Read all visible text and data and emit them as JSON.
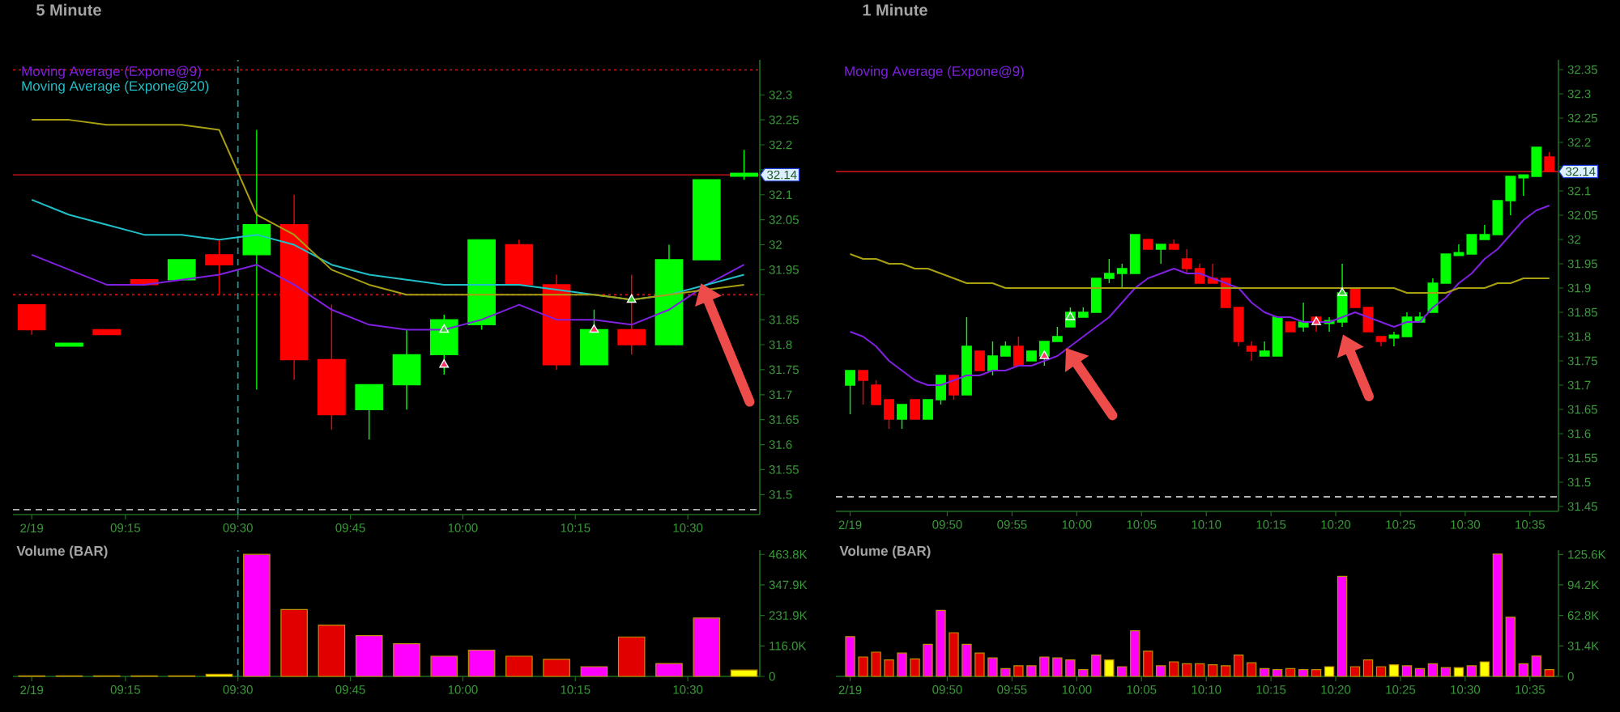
{
  "chart_data": [
    {
      "type": "candlestick",
      "title": "5 Minute",
      "legend": "top left",
      "x": [
        9.0417,
        9.125,
        9.2083,
        9.2917,
        9.375,
        9.4583,
        9.5417,
        9.625,
        9.7083,
        9.7917,
        9.875,
        9.9583,
        10.0417,
        10.125,
        10.2083,
        10.2917,
        10.375,
        10.4583,
        10.5417,
        10.625
      ],
      "xlim": [
        9,
        10.66
      ],
      "xticks": [
        {
          "value": 9.0417,
          "label": "2/19"
        },
        {
          "value": 9.25,
          "label": "09:15"
        },
        {
          "value": 9.5,
          "label": "09:30"
        },
        {
          "value": 9.75,
          "label": "09:45"
        },
        {
          "value": 10,
          "label": "10:00"
        },
        {
          "value": 10.25,
          "label": "10:15"
        },
        {
          "value": 10.5,
          "label": "10:30"
        }
      ],
      "ylim": [
        31.46,
        32.37
      ],
      "yticks": [
        31.5,
        31.55,
        31.6,
        31.65,
        31.7,
        31.75,
        31.8,
        31.85,
        {
          "value": 31.9,
          "label": null
        },
        31.95,
        32,
        32.05,
        32.1,
        {
          "value": 32.15,
          "label": null
        },
        32.2,
        32.25,
        32.3
      ],
      "series": [
        {
          "type": "candlestick",
          "ohlc": [
            [
              31.88,
              31.88,
              31.82,
              31.83
            ],
            [
              31.8,
              31.8,
              31.8,
              31.8
            ],
            [
              31.83,
              31.83,
              31.82,
              31.82
            ],
            [
              31.93,
              31.93,
              31.92,
              31.92
            ],
            [
              31.93,
              31.97,
              31.93,
              31.97
            ],
            [
              31.98,
              32.01,
              31.9,
              31.96
            ],
            [
              31.98,
              32.23,
              31.71,
              32.04
            ],
            [
              32.04,
              32.1,
              31.73,
              31.77
            ],
            [
              31.77,
              31.88,
              31.63,
              31.66
            ],
            [
              31.67,
              31.72,
              31.61,
              31.72
            ],
            [
              31.72,
              31.83,
              31.67,
              31.78
            ],
            [
              31.78,
              31.86,
              31.74,
              31.85
            ],
            [
              31.84,
              32.01,
              31.83,
              32.01
            ],
            [
              32.0,
              32.01,
              31.92,
              31.92
            ],
            [
              31.92,
              31.94,
              31.75,
              31.76
            ],
            [
              31.76,
              31.87,
              31.76,
              31.83
            ],
            [
              31.83,
              31.94,
              31.78,
              31.8
            ],
            [
              31.8,
              32.0,
              31.8,
              31.97
            ],
            [
              31.97,
              32.13,
              31.97,
              32.13
            ],
            [
              32.14,
              32.19,
              32.13,
              32.14
            ]
          ],
          "colors": [
            "#ff0000",
            "#00ff00",
            "#ff0000",
            "#ff0000",
            "#00ff00",
            "#ff0000",
            "#00ff00",
            "#ff0000",
            "#ff0000",
            "#00ff00",
            "#00ff00",
            "#00ff00",
            "#00ff00",
            "#ff0000",
            "#ff0000",
            "#00ff00",
            "#ff0000",
            "#00ff00",
            "#00ff00",
            "#00ff00"
          ]
        },
        {
          "type": "line",
          "name": "Moving Average (Expone@9)",
          "color": "#8020e0",
          "values": [
            31.98,
            31.95,
            31.92,
            31.92,
            31.93,
            31.94,
            31.96,
            31.92,
            31.87,
            31.84,
            31.83,
            31.83,
            31.85,
            31.88,
            31.85,
            31.85,
            31.84,
            31.87,
            31.92,
            31.96
          ]
        },
        {
          "type": "line",
          "name": "Moving Average (Expone@20)",
          "color": "#20c0c8",
          "values": [
            32.09,
            32.06,
            32.04,
            32.02,
            32.02,
            32.01,
            32.02,
            32.0,
            31.96,
            31.94,
            31.93,
            31.92,
            31.92,
            31.92,
            31.91,
            31.9,
            31.89,
            31.9,
            31.92,
            31.94
          ]
        },
        {
          "type": "line",
          "color": "#a8a010",
          "values": [
            32.25,
            32.25,
            32.24,
            32.24,
            32.24,
            32.23,
            32.06,
            32.02,
            31.95,
            31.92,
            31.9,
            31.9,
            31.9,
            31.9,
            31.9,
            31.9,
            31.89,
            31.9,
            31.91,
            31.92
          ]
        },
        {
          "type": "scatter",
          "marker": "triangle",
          "color": "#30d030",
          "x": [
            9.9583,
            10.375
          ],
          "values": [
            31.83,
            31.89
          ]
        },
        {
          "type": "scatter",
          "marker": "triangle",
          "color": "#ff3366",
          "x": [
            9.9583,
            10.2917
          ],
          "values": [
            31.76,
            31.83
          ]
        }
      ],
      "ref_lines": [
        {
          "axis": "y",
          "value": 32.35,
          "color": "#c01010",
          "line_style": "dotted"
        },
        {
          "axis": "y",
          "value": 32.14,
          "color": "#a01010",
          "line_style": "solid",
          "label": "32.14"
        },
        {
          "axis": "y",
          "value": 31.9,
          "color": "#c01010",
          "line_style": "dotted"
        },
        {
          "axis": "y",
          "value": 31.47,
          "color": "#b4b4b4",
          "line_style": "dashed"
        },
        {
          "axis": "x",
          "value": 9.5,
          "color": "#1f8f8f",
          "line_style": "dashed"
        }
      ]
    },
    {
      "type": "candlestick",
      "title": "1 Minute",
      "legend": "top left",
      "x": [
        9.7083,
        9.725,
        9.7417,
        9.7583,
        9.775,
        9.7917,
        9.8083,
        9.825,
        9.8417,
        9.8583,
        9.875,
        9.8917,
        9.9083,
        9.925,
        9.9417,
        9.9583,
        9.975,
        9.9917,
        10.0083,
        10.025,
        10.0417,
        10.0583,
        10.075,
        10.0917,
        10.1083,
        10.125,
        10.1417,
        10.1583,
        10.175,
        10.1917,
        10.2083,
        10.225,
        10.2417,
        10.2583,
        10.275,
        10.2917,
        10.3083,
        10.325,
        10.3417,
        10.3583,
        10.375,
        10.3917,
        10.4083,
        10.425,
        10.4417,
        10.4583,
        10.475,
        10.4917,
        10.5083,
        10.525,
        10.5417,
        10.5583,
        10.575,
        10.5917,
        10.6083
      ],
      "xlim": [
        9.69,
        10.62
      ],
      "xticks": [
        {
          "value": 9.7083,
          "label": "2/19"
        },
        {
          "value": 9.8333,
          "label": "09:50"
        },
        {
          "value": 9.9167,
          "label": "09:55"
        },
        {
          "value": 10,
          "label": "10:00"
        },
        {
          "value": 10.0833,
          "label": "10:05"
        },
        {
          "value": 10.1667,
          "label": "10:10"
        },
        {
          "value": 10.25,
          "label": "10:15"
        },
        {
          "value": 10.3333,
          "label": "10:20"
        },
        {
          "value": 10.4167,
          "label": "10:25"
        },
        {
          "value": 10.5,
          "label": "10:30"
        },
        {
          "value": 10.5833,
          "label": "10:35"
        }
      ],
      "ylim": [
        31.44,
        32.37
      ],
      "yticks": [
        31.45,
        31.5,
        31.55,
        31.6,
        31.65,
        31.7,
        31.75,
        31.8,
        31.85,
        31.9,
        31.95,
        32,
        32.05,
        32.1,
        {
          "value": 32.15,
          "label": null
        },
        32.2,
        32.25,
        32.3,
        32.35
      ],
      "series": [
        {
          "type": "candlestick",
          "ohlc": [
            [
              31.7,
              31.73,
              31.64,
              31.73
            ],
            [
              31.73,
              31.73,
              31.66,
              31.71
            ],
            [
              31.7,
              31.71,
              31.66,
              31.66
            ],
            [
              31.67,
              31.67,
              31.61,
              31.63
            ],
            [
              31.63,
              31.66,
              31.61,
              31.66
            ],
            [
              31.67,
              31.67,
              31.63,
              31.63
            ],
            [
              31.63,
              31.67,
              31.63,
              31.67
            ],
            [
              31.67,
              31.72,
              31.66,
              31.72
            ],
            [
              31.72,
              31.72,
              31.67,
              31.68
            ],
            [
              31.68,
              31.84,
              31.68,
              31.78
            ],
            [
              31.77,
              31.77,
              31.73,
              31.73
            ],
            [
              31.73,
              31.79,
              31.72,
              31.76
            ],
            [
              31.76,
              31.79,
              31.76,
              31.78
            ],
            [
              31.78,
              31.8,
              31.74,
              31.74
            ],
            [
              31.75,
              31.77,
              31.75,
              31.77
            ],
            [
              31.76,
              31.79,
              31.74,
              31.79
            ],
            [
              31.79,
              31.82,
              31.79,
              31.8
            ],
            [
              31.82,
              31.86,
              31.82,
              31.85
            ],
            [
              31.84,
              31.86,
              31.84,
              31.85
            ],
            [
              31.85,
              31.92,
              31.85,
              31.92
            ],
            [
              31.92,
              31.96,
              31.91,
              31.93
            ],
            [
              31.93,
              31.95,
              31.9,
              31.94
            ],
            [
              31.93,
              32.01,
              31.93,
              32.01
            ],
            [
              32.0,
              32.0,
              31.98,
              31.98
            ],
            [
              31.98,
              31.99,
              31.95,
              31.99
            ],
            [
              31.99,
              32.0,
              31.98,
              31.98
            ],
            [
              31.96,
              31.98,
              31.93,
              31.94
            ],
            [
              31.94,
              31.95,
              31.91,
              31.91
            ],
            [
              31.92,
              31.95,
              31.91,
              31.91
            ],
            [
              31.92,
              31.92,
              31.86,
              31.86
            ],
            [
              31.86,
              31.86,
              31.78,
              31.79
            ],
            [
              31.78,
              31.79,
              31.75,
              31.77
            ],
            [
              31.76,
              31.79,
              31.76,
              31.77
            ],
            [
              31.76,
              31.84,
              31.76,
              31.84
            ],
            [
              31.83,
              31.83,
              31.81,
              31.81
            ],
            [
              31.82,
              31.87,
              31.81,
              31.83
            ],
            [
              31.84,
              31.84,
              31.81,
              31.83
            ],
            [
              31.83,
              31.84,
              31.81,
              31.83
            ],
            [
              31.83,
              31.95,
              31.82,
              31.89
            ],
            [
              31.9,
              31.9,
              31.86,
              31.86
            ],
            [
              31.86,
              31.86,
              31.81,
              31.81
            ],
            [
              31.8,
              31.8,
              31.78,
              31.79
            ],
            [
              31.8,
              31.81,
              31.78,
              31.8
            ],
            [
              31.8,
              31.85,
              31.8,
              31.84
            ],
            [
              31.83,
              31.85,
              31.83,
              31.84
            ],
            [
              31.85,
              31.92,
              31.85,
              31.91
            ],
            [
              31.91,
              31.97,
              31.91,
              31.97
            ],
            [
              31.97,
              31.99,
              31.97,
              31.97
            ],
            [
              31.97,
              32.01,
              31.97,
              32.01
            ],
            [
              32.0,
              32.03,
              32.0,
              32.01
            ],
            [
              32.01,
              32.08,
              32.01,
              32.08
            ],
            [
              32.08,
              32.13,
              32.05,
              32.13
            ],
            [
              32.13,
              32.13,
              32.09,
              32.13
            ],
            [
              32.13,
              32.19,
              32.13,
              32.19
            ],
            [
              32.17,
              32.18,
              32.14,
              32.14
            ]
          ],
          "colors": [
            "#00ff00",
            "#ff0000",
            "#ff0000",
            "#ff0000",
            "#00ff00",
            "#ff0000",
            "#00ff00",
            "#00ff00",
            "#ff0000",
            "#00ff00",
            "#ff0000",
            "#00ff00",
            "#00ff00",
            "#ff0000",
            "#00ff00",
            "#00ff00",
            "#00ff00",
            "#00ff00",
            "#00ff00",
            "#00ff00",
            "#00ff00",
            "#00ff00",
            "#00ff00",
            "#ff0000",
            "#00ff00",
            "#ff0000",
            "#ff0000",
            "#ff0000",
            "#ff0000",
            "#ff0000",
            "#ff0000",
            "#ff0000",
            "#00ff00",
            "#00ff00",
            "#ff0000",
            "#00ff00",
            "#ff0000",
            "#00ff00",
            "#00ff00",
            "#ff0000",
            "#ff0000",
            "#ff0000",
            "#00ff00",
            "#00ff00",
            "#00ff00",
            "#00ff00",
            "#00ff00",
            "#00ff00",
            "#00ff00",
            "#00ff00",
            "#00ff00",
            "#00ff00",
            "#00ff00",
            "#00ff00",
            "#ff0000"
          ]
        },
        {
          "type": "line",
          "name": "Moving Average (Expone@9)",
          "color": "#8020e0",
          "values": [
            31.81,
            31.8,
            31.78,
            31.75,
            31.73,
            31.71,
            31.7,
            31.7,
            31.71,
            31.72,
            31.72,
            31.73,
            31.73,
            31.74,
            31.74,
            31.75,
            31.76,
            31.78,
            31.8,
            31.82,
            31.84,
            31.87,
            31.9,
            31.92,
            31.93,
            31.94,
            31.93,
            31.93,
            31.92,
            31.91,
            31.9,
            31.87,
            31.85,
            31.84,
            31.84,
            31.83,
            31.83,
            31.83,
            31.84,
            31.85,
            31.84,
            31.83,
            31.82,
            31.83,
            31.83,
            31.86,
            31.88,
            31.91,
            31.93,
            31.96,
            31.98,
            32.01,
            32.04,
            32.06,
            32.07
          ]
        },
        {
          "type": "line",
          "color": "#a8a010",
          "values": [
            31.97,
            31.96,
            31.96,
            31.95,
            31.95,
            31.94,
            31.94,
            31.93,
            31.92,
            31.91,
            31.91,
            31.91,
            31.9,
            31.9,
            31.9,
            31.9,
            31.9,
            31.9,
            31.9,
            31.9,
            31.9,
            31.9,
            31.9,
            31.9,
            31.9,
            31.9,
            31.9,
            31.9,
            31.9,
            31.9,
            31.9,
            31.9,
            31.9,
            31.9,
            31.9,
            31.9,
            31.9,
            31.9,
            31.9,
            31.9,
            31.9,
            31.9,
            31.9,
            31.89,
            31.89,
            31.89,
            31.89,
            31.9,
            31.9,
            31.9,
            31.91,
            31.91,
            31.92,
            31.92,
            31.92
          ]
        },
        {
          "type": "scatter",
          "marker": "triangle",
          "color": "#30d030",
          "x": [
            9.9917,
            10.3417
          ],
          "values": [
            31.84,
            31.89
          ]
        },
        {
          "type": "scatter",
          "marker": "triangle",
          "color": "#ff3366",
          "x": [
            9.9583,
            10.3083
          ],
          "values": [
            31.76,
            31.83
          ]
        }
      ],
      "ref_lines": [
        {
          "axis": "y",
          "value": 32.14,
          "color": "#a01010",
          "line_style": "solid",
          "label": "32.14"
        },
        {
          "axis": "y",
          "value": 31.47,
          "color": "#b4b4b4",
          "line_style": "dashed"
        }
      ]
    },
    {
      "type": "bar",
      "title": "Volume (BAR)",
      "x": [
        9.0417,
        9.125,
        9.2083,
        9.2917,
        9.375,
        9.4583,
        9.5417,
        9.625,
        9.7083,
        9.7917,
        9.875,
        9.9583,
        10.0417,
        10.125,
        10.2083,
        10.2917,
        10.375,
        10.4583,
        10.5417,
        10.625
      ],
      "values": [
        2000,
        2000,
        2000,
        2000,
        2000,
        8000,
        464000,
        254000,
        195000,
        155000,
        124000,
        77000,
        100000,
        77000,
        65000,
        37000,
        150000,
        49000,
        222000,
        24000
      ],
      "colors": [
        "#ffff00",
        "#ffff00",
        "#ffff00",
        "#ffff00",
        "#ffff00",
        "#ffff00",
        "#ff00ff",
        "#e00000",
        "#e00000",
        "#ff00ff",
        "#ff00ff",
        "#ff00ff",
        "#ff00ff",
        "#e00000",
        "#e00000",
        "#ff00ff",
        "#e00000",
        "#ff00ff",
        "#ff00ff",
        "#ffff00"
      ],
      "xlim": [
        9,
        10.66
      ],
      "xticks": [
        {
          "value": 9.0417,
          "label": "2/19"
        },
        {
          "value": 9.25,
          "label": "09:15"
        },
        {
          "value": 9.5,
          "label": "09:30"
        },
        {
          "value": 9.75,
          "label": "09:45"
        },
        {
          "value": 10,
          "label": "10:00"
        },
        {
          "value": 10.25,
          "label": "10:15"
        },
        {
          "value": 10.5,
          "label": "10:30"
        }
      ],
      "ylim": [
        0,
        480000
      ],
      "yticks": [
        0,
        {
          "value": 116000,
          "label": "116.0K"
        },
        {
          "value": 231900,
          "label": "231.9K"
        },
        {
          "value": 347900,
          "label": "347.9K"
        },
        {
          "value": 463800,
          "label": "463.8K"
        }
      ],
      "ref_lines": [
        {
          "axis": "x",
          "value": 9.5,
          "color": "#1f8f8f",
          "line_style": "dashed"
        }
      ]
    },
    {
      "type": "bar",
      "title": "Volume (BAR)",
      "x": [
        9.7083,
        9.725,
        9.7417,
        9.7583,
        9.775,
        9.7917,
        9.8083,
        9.825,
        9.8417,
        9.8583,
        9.875,
        9.8917,
        9.9083,
        9.925,
        9.9417,
        9.9583,
        9.975,
        9.9917,
        10.0083,
        10.025,
        10.0417,
        10.0583,
        10.075,
        10.0917,
        10.1083,
        10.125,
        10.1417,
        10.1583,
        10.175,
        10.1917,
        10.2083,
        10.225,
        10.2417,
        10.2583,
        10.275,
        10.2917,
        10.3083,
        10.325,
        10.3417,
        10.3583,
        10.375,
        10.3917,
        10.4083,
        10.425,
        10.4417,
        10.4583,
        10.475,
        10.4917,
        10.5083,
        10.525,
        10.5417,
        10.5583,
        10.575,
        10.5917,
        10.6083
      ],
      "values": [
        41000,
        20000,
        25000,
        17000,
        24000,
        18000,
        33000,
        68000,
        45000,
        33000,
        24000,
        19000,
        8000,
        11000,
        11000,
        20000,
        19000,
        17000,
        7000,
        22000,
        17000,
        10000,
        47000,
        26000,
        11000,
        15000,
        13000,
        13000,
        12000,
        11000,
        22000,
        14000,
        8000,
        7000,
        8000,
        7000,
        7000,
        10000,
        103000,
        10000,
        17000,
        10000,
        12000,
        11000,
        8000,
        13000,
        9000,
        9000,
        11000,
        15000,
        126000,
        61000,
        13000,
        21000,
        7000
      ],
      "colors": [
        "#ff00ff",
        "#e00000",
        "#e00000",
        "#e00000",
        "#ff00ff",
        "#e00000",
        "#ff00ff",
        "#ff00ff",
        "#e00000",
        "#ff00ff",
        "#e00000",
        "#ff00ff",
        "#ff00ff",
        "#e00000",
        "#ff00ff",
        "#ff00ff",
        "#ff00ff",
        "#ff00ff",
        "#ff00ff",
        "#ff00ff",
        "#ffff00",
        "#ff00ff",
        "#ff00ff",
        "#e00000",
        "#ff00ff",
        "#e00000",
        "#e00000",
        "#e00000",
        "#e00000",
        "#e00000",
        "#e00000",
        "#e00000",
        "#ff00ff",
        "#ff00ff",
        "#e00000",
        "#ff00ff",
        "#e00000",
        "#ffff00",
        "#ff00ff",
        "#e00000",
        "#e00000",
        "#e00000",
        "#ffff00",
        "#ff00ff",
        "#ff00ff",
        "#ff00ff",
        "#ff00ff",
        "#ffff00",
        "#ff00ff",
        "#ffff00",
        "#ff00ff",
        "#ff00ff",
        "#ff00ff",
        "#ff00ff",
        "#e00000"
      ],
      "xlim": [
        9.69,
        10.62
      ],
      "xticks": [
        {
          "value": 9.7083,
          "label": "2/19"
        },
        {
          "value": 9.8333,
          "label": "09:50"
        },
        {
          "value": 9.9167,
          "label": "09:55"
        },
        {
          "value": 10,
          "label": "10:00"
        },
        {
          "value": 10.0833,
          "label": "10:05"
        },
        {
          "value": 10.1667,
          "label": "10:10"
        },
        {
          "value": 10.25,
          "label": "10:15"
        },
        {
          "value": 10.3333,
          "label": "10:20"
        },
        {
          "value": 10.4167,
          "label": "10:25"
        },
        {
          "value": 10.5,
          "label": "10:30"
        },
        {
          "value": 10.5833,
          "label": "10:35"
        }
      ],
      "ylim": [
        0,
        130000
      ],
      "yticks": [
        0,
        {
          "value": 31400,
          "label": "31.4K"
        },
        {
          "value": 62800,
          "label": "62.8K"
        },
        {
          "value": 94200,
          "label": "94.2K"
        },
        {
          "value": 125600,
          "label": "125.6K"
        }
      ]
    }
  ]
}
